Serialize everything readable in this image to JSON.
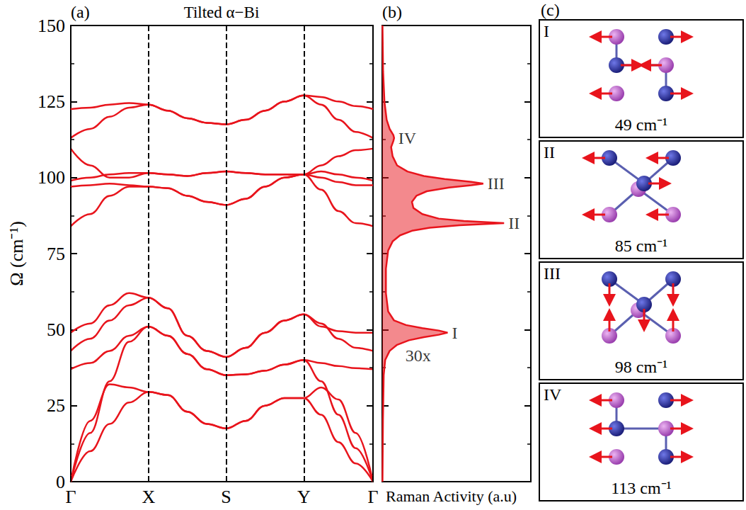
{
  "chart_data": [
    {
      "type": "line",
      "panel_label": "(a)",
      "title": "Tilted α−Bi",
      "ylabel": "Ω (cm⁻¹)",
      "x": [
        0,
        0.25,
        0.5,
        0.75,
        1,
        1.25,
        1.5,
        1.75,
        2,
        2.25,
        2.5,
        2.75,
        3,
        3.2225,
        3.445,
        3.6675,
        3.89
      ],
      "xlim": [
        0,
        3.89
      ],
      "xticks": [
        {
          "value": 0,
          "label": "Γ"
        },
        {
          "value": 1,
          "label": "X"
        },
        {
          "value": 2,
          "label": "S"
        },
        {
          "value": 3,
          "label": "Y"
        },
        {
          "value": 3.89,
          "label": "Γ"
        }
      ],
      "ylim": [
        0,
        150
      ],
      "yticks": [
        0,
        25,
        50,
        75,
        100,
        125,
        150
      ],
      "grid": "x",
      "color": "#e8141c",
      "series": [
        {
          "values": [
            0,
            10,
            19,
            26,
            29.5,
            28.5,
            23,
            19,
            17.5,
            20,
            25,
            27.5,
            27.5,
            22,
            13,
            6,
            0
          ]
        },
        {
          "values": [
            0,
            20,
            32,
            31,
            29.5,
            28.5,
            23,
            19,
            17.5,
            20,
            25,
            27.5,
            27.5,
            31,
            27,
            16,
            0
          ]
        },
        {
          "values": [
            0,
            16,
            33,
            46,
            51,
            48,
            42,
            37,
            35,
            35.3,
            36.5,
            38.5,
            40,
            33,
            22,
            11,
            0
          ]
        },
        {
          "values": [
            37,
            39,
            43,
            48,
            51,
            48,
            42,
            37,
            35,
            35.3,
            36.5,
            38.5,
            40,
            39,
            38,
            37.3,
            37
          ]
        },
        {
          "values": [
            43,
            47,
            53,
            58,
            60.5,
            57,
            48,
            43,
            41,
            44,
            49,
            53,
            55,
            52,
            47,
            44,
            43
          ]
        },
        {
          "values": [
            49,
            52,
            58,
            62,
            60.5,
            57,
            48,
            43,
            41,
            44,
            49,
            53,
            55,
            51,
            49.5,
            49,
            49
          ]
        },
        {
          "values": [
            84,
            88,
            94,
            97,
            97,
            96.5,
            94,
            92,
            91,
            93,
            97,
            100,
            101,
            96,
            89,
            85,
            84
          ]
        },
        {
          "values": [
            97,
            97.5,
            98,
            97.5,
            97,
            96.5,
            94,
            92,
            91,
            93,
            97,
            100,
            101,
            100,
            98.5,
            97.5,
            97.5
          ]
        },
        {
          "values": [
            99,
            100,
            101,
            101.5,
            101.5,
            101,
            100.5,
            101.5,
            102,
            101.5,
            101,
            101,
            101,
            102,
            101,
            100,
            99
          ]
        },
        {
          "values": [
            109.5,
            104,
            100,
            100,
            101.5,
            101,
            100.5,
            101.5,
            102,
            101.5,
            101,
            101,
            101,
            104,
            107,
            109,
            109.5
          ]
        },
        {
          "values": [
            113,
            116,
            120,
            123,
            124,
            122,
            119.5,
            118,
            117.5,
            119,
            122,
            125,
            127,
            124,
            119,
            115,
            113
          ]
        },
        {
          "values": [
            122.5,
            123,
            124,
            124.5,
            124,
            122,
            119.5,
            118,
            117.5,
            119,
            122,
            125,
            127,
            126.5,
            125,
            123.5,
            122.5
          ]
        }
      ]
    },
    {
      "type": "area",
      "orientation": "horizontal",
      "panel_label": "(b)",
      "xlabel": "Raman Activity (a.u)",
      "frequency": [
        0,
        20,
        35,
        40,
        43,
        45,
        46.5,
        47.5,
        48.3,
        49,
        49.7,
        50.5,
        51.5,
        53,
        56,
        62,
        70,
        76,
        79,
        81,
        82.5,
        83.5,
        84.3,
        85,
        85.7,
        86.5,
        88,
        90,
        92,
        94,
        95.5,
        96.7,
        97.5,
        98,
        98.6,
        99.5,
        100.5,
        102,
        104,
        107,
        110,
        112,
        113,
        114,
        116,
        119,
        125,
        135,
        150
      ],
      "values": [
        0.2,
        0.5,
        1,
        2,
        5,
        10,
        18,
        28,
        38,
        44,
        38,
        27,
        16,
        8,
        4,
        2.5,
        2.5,
        4,
        7,
        12,
        20,
        32,
        52,
        82,
        55,
        38,
        27,
        21,
        20,
        23,
        30,
        45,
        60,
        68,
        60,
        42,
        28,
        17,
        10,
        7,
        6,
        7.5,
        8,
        7.5,
        5,
        3,
        1.5,
        0.6,
        0.2
      ],
      "xlim": [
        0,
        100
      ],
      "ylim": [
        0,
        150
      ],
      "yticks": [
        0,
        25,
        50,
        75,
        100,
        125,
        150
      ],
      "tick_labels": false,
      "grid": false,
      "color": "#e8141c",
      "peaks": [
        {
          "label": "I",
          "frequency": 49,
          "note": "30x"
        },
        {
          "label": "II",
          "frequency": 85
        },
        {
          "label": "III",
          "frequency": 98
        },
        {
          "label": "IV",
          "frequency": 113
        }
      ]
    }
  ],
  "modes": {
    "panel_label": "(c)",
    "items": [
      {
        "label": "I",
        "frequency_label": "49 cm⁻¹"
      },
      {
        "label": "II",
        "frequency_label": "85 cm⁻¹"
      },
      {
        "label": "III",
        "frequency_label": "98 cm⁻¹"
      },
      {
        "label": "IV",
        "frequency_label": "113 cm⁻¹"
      }
    ]
  }
}
